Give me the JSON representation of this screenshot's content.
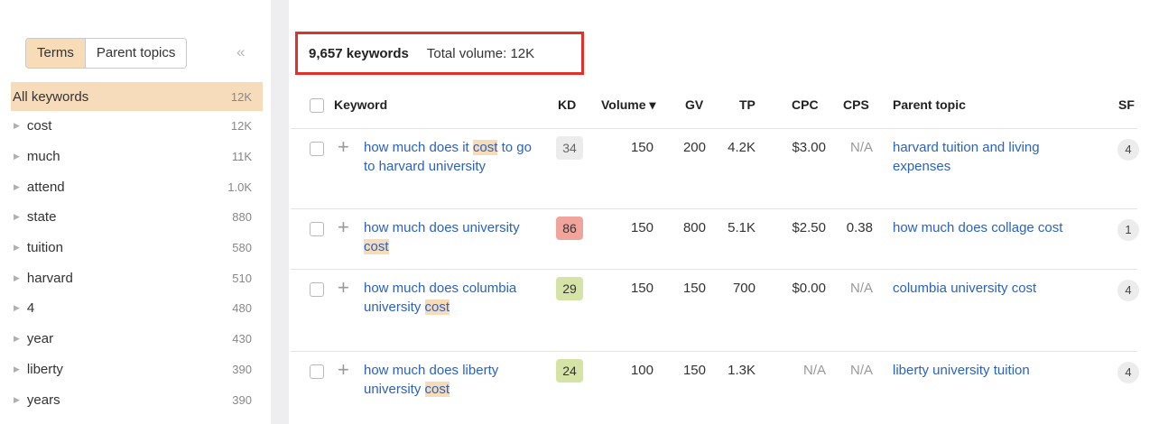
{
  "sidebar": {
    "tabs": [
      {
        "label": "Terms",
        "active": true
      },
      {
        "label": "Parent topics",
        "active": false
      }
    ],
    "collapse_icon": "double-chevron-left-icon",
    "items": [
      {
        "label": "All keywords",
        "count": "12K",
        "active": true
      },
      {
        "label": "cost",
        "count": "12K"
      },
      {
        "label": "much",
        "count": "11K"
      },
      {
        "label": "attend",
        "count": "1.0K"
      },
      {
        "label": "state",
        "count": "880"
      },
      {
        "label": "tuition",
        "count": "580"
      },
      {
        "label": "harvard",
        "count": "510"
      },
      {
        "label": "4",
        "count": "480"
      },
      {
        "label": "year",
        "count": "430"
      },
      {
        "label": "liberty",
        "count": "390"
      },
      {
        "label": "years",
        "count": "390"
      }
    ]
  },
  "summary": {
    "keywords": "9,657 keywords",
    "total_volume": "Total volume: 12K"
  },
  "table": {
    "headers": {
      "keyword": "Keyword",
      "kd": "KD",
      "volume": "Volume ▾",
      "gv": "GV",
      "tp": "TP",
      "cpc": "CPC",
      "cps": "CPS",
      "parent_topic": "Parent topic",
      "sf": "SF"
    },
    "rows": [
      {
        "keyword_parts": [
          "how much does it ",
          "cost",
          " to go to harvard university"
        ],
        "kd": "34",
        "kd_color": "#ececec",
        "volume": "150",
        "gv": "200",
        "tp": "4.2K",
        "cpc": "$3.00",
        "cps": "N/A",
        "parent_topic": "harvard tuition and living expenses",
        "sf": "4"
      },
      {
        "keyword_parts": [
          "how much does university ",
          "cost",
          ""
        ],
        "kd": "86",
        "kd_color": "#f0a49c",
        "volume": "150",
        "gv": "800",
        "tp": "5.1K",
        "cpc": "$2.50",
        "cps": "0.38",
        "parent_topic": "how much does collage cost",
        "sf": "1"
      },
      {
        "keyword_parts": [
          "how much does columbia university ",
          "cost",
          ""
        ],
        "kd": "29",
        "kd_color": "#d5e3a6",
        "volume": "150",
        "gv": "150",
        "tp": "700",
        "cpc": "$0.00",
        "cps": "N/A",
        "parent_topic": "columbia university cost",
        "sf": "4"
      },
      {
        "keyword_parts": [
          "how much does liberty university ",
          "cost",
          ""
        ],
        "kd": "24",
        "kd_color": "#d5e3a6",
        "volume": "100",
        "gv": "150",
        "tp": "1.3K",
        "cpc": "N/A",
        "cps": "N/A",
        "parent_topic": "liberty university tuition",
        "sf": "4"
      }
    ]
  }
}
